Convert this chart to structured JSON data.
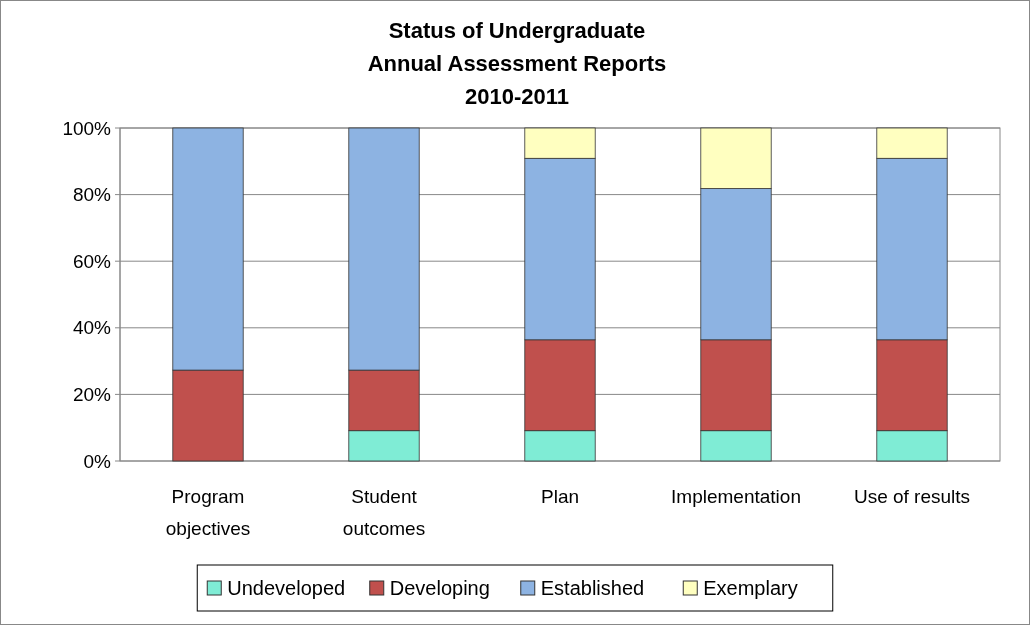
{
  "chart_data": {
    "type": "bar",
    "title": "Status of Undergraduate Annual Assessment Reports 2010-2011",
    "stacked": true,
    "categories": [
      "Program objectives",
      "Student outcomes",
      "Plan",
      "Implementation",
      "Use of results"
    ],
    "series": [
      {
        "name": "Undeveloped",
        "color": "#7fecd5",
        "values": [
          0,
          9.1,
          9.1,
          9.1,
          9.1
        ]
      },
      {
        "name": "Developing",
        "color": "#c0504d",
        "values": [
          27.3,
          18.2,
          27.3,
          27.3,
          27.3
        ]
      },
      {
        "name": "Established",
        "color": "#8db3e2",
        "values": [
          72.7,
          72.7,
          54.5,
          45.4,
          54.5
        ]
      },
      {
        "name": "Exemplary",
        "color": "#ffffc0",
        "values": [
          0,
          0,
          9.1,
          18.2,
          9.1
        ]
      }
    ],
    "ylim": [
      0,
      100
    ],
    "yticks": [
      {
        "value": 0,
        "label": "0%"
      },
      {
        "value": 20,
        "label": "20%"
      },
      {
        "value": 40,
        "label": "40%"
      },
      {
        "value": 60,
        "label": "60%"
      },
      {
        "value": 80,
        "label": "80%"
      },
      {
        "value": 100,
        "label": "100%"
      }
    ],
    "grid": "y",
    "legend": "bottom"
  }
}
